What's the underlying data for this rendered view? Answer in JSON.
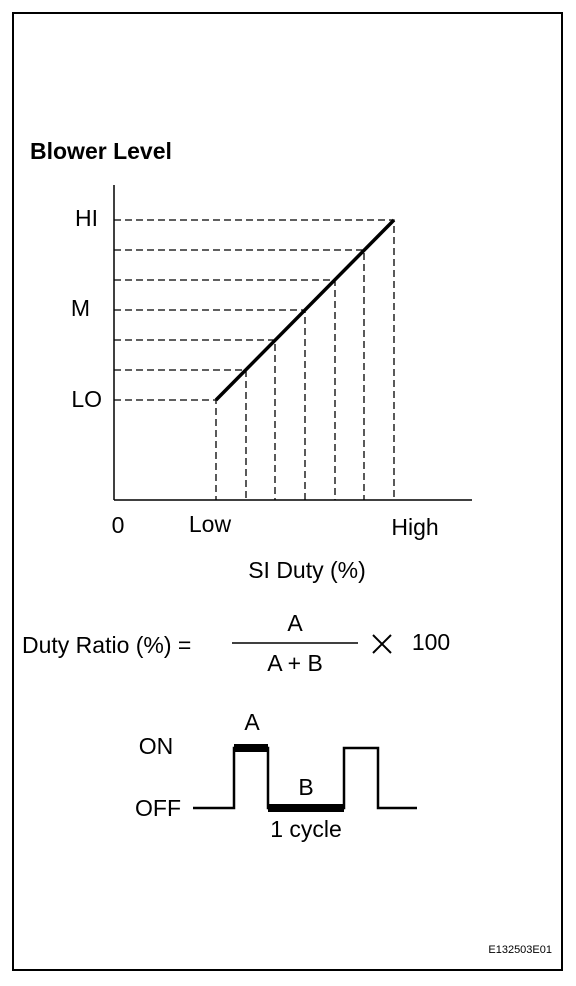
{
  "title": "Blower Level",
  "y_axis": {
    "levels": [
      "HI",
      "M",
      "LO"
    ]
  },
  "x_axis": {
    "labels": [
      "0",
      "Low",
      "High"
    ],
    "title": "SI Duty (%)"
  },
  "formula": {
    "lhs": "Duty Ratio (%) =",
    "numerator": "A",
    "denominator": "A + B",
    "multiplier": "100"
  },
  "waveform": {
    "on_label": "ON",
    "off_label": "OFF",
    "pulse_label": "A",
    "gap_label": "B",
    "cycle_label": "1 cycle"
  },
  "figure_id": "E132503E01"
}
